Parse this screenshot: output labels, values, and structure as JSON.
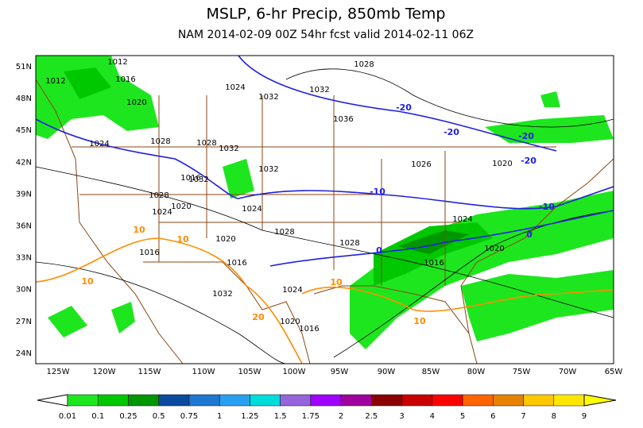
{
  "header": {
    "title": "MSLP, 6-hr Precip, 850mb Temp",
    "subtitle": "NAM 2014-02-09 00Z 54hr fcst valid 2014-02-11 06Z"
  },
  "map": {
    "lat_labels": [
      "51N",
      "48N",
      "45N",
      "42N",
      "39N",
      "36N",
      "33N",
      "30N",
      "27N",
      "24N"
    ],
    "lon_labels": [
      "125W",
      "120W",
      "115W",
      "110W",
      "105W",
      "100W",
      "95W",
      "90W",
      "85W",
      "80W",
      "75W",
      "70W",
      "65W"
    ],
    "isobar_labels": [
      "1012",
      "1012",
      "1016",
      "1020",
      "1024",
      "1028",
      "1028",
      "1032",
      "1036",
      "1032",
      "1024",
      "1028",
      "1032",
      "1028",
      "1032",
      "1024",
      "1020",
      "1028",
      "1024",
      "1020",
      "1016",
      "1016",
      "1016",
      "1024",
      "1020",
      "1016",
      "1032",
      "1026",
      "1020",
      "1028",
      "1024",
      "1020",
      "1016",
      "1032"
    ],
    "temp_labels": [
      "-20",
      "-20",
      "-20",
      "-20",
      "-10",
      "-10",
      "0",
      "0",
      "10",
      "10",
      "10",
      "10",
      "10",
      "20"
    ]
  },
  "colorbar": {
    "labels": [
      "0.01",
      "0.1",
      "0.25",
      "0.5",
      "0.75",
      "1",
      "1.25",
      "1.5",
      "1.75",
      "2",
      "2.5",
      "3",
      "4",
      "5",
      "6",
      "7",
      "8",
      "9"
    ],
    "colors": [
      "#1ee61e",
      "#00c800",
      "#009600",
      "#0a4ba0",
      "#1e78d2",
      "#28a0f0",
      "#00dcdc",
      "#9664dc",
      "#a000ff",
      "#a000a0",
      "#8b0000",
      "#c80000",
      "#ff0000",
      "#ff6400",
      "#e68200",
      "#ffc800",
      "#ffe600",
      "#ffff00"
    ]
  }
}
